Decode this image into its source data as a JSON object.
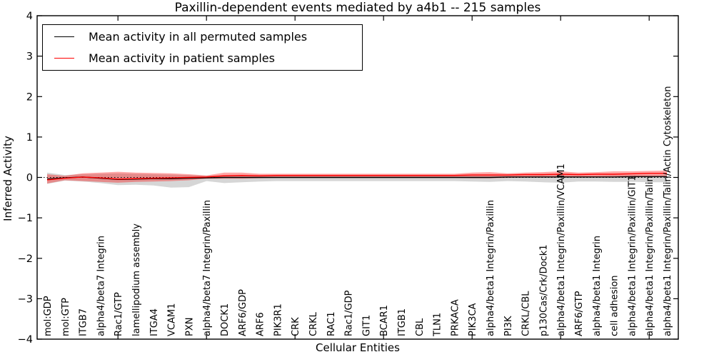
{
  "chart_data": {
    "type": "line",
    "title": "Paxillin-dependent events mediated by a4b1 -- 215 samples",
    "xlabel": "Cellular Entities",
    "ylabel": "Inferred Activity",
    "ylim": [
      -4,
      4
    ],
    "yticks": [
      -4,
      -3,
      -2,
      -1,
      0,
      1,
      2,
      3,
      4
    ],
    "xtick_positions": [
      5,
      10,
      15,
      20,
      25,
      30,
      35
    ],
    "zero_reference_line": 0,
    "grid": false,
    "legend_position": "upper left",
    "categories": [
      "mol:GDP",
      "mol:GTP",
      "ITGB7",
      "alpha4/beta7 Integrin",
      "Rac1/GTP",
      "lamellipodium assembly",
      "ITGA4",
      "VCAM1",
      "PXN",
      "alpha4/beta7 Integrin/Paxillin",
      "DOCK1",
      "ARF6/GDP",
      "ARF6",
      "PIK3R1",
      "CRK",
      "CRKL",
      "RAC1",
      "Rac1/GDP",
      "GIT1",
      "BCAR1",
      "ITGB1",
      "CBL",
      "TLN1",
      "PRKACA",
      "PIK3CA",
      "alpha4/beta1 Integrin/Paxillin",
      "PI3K",
      "CRKL/CBL",
      "p130Cas/Crk/Dock1",
      "alpha4/beta1 Integrin/Paxillin/VCAM1",
      "ARF6/GTP",
      "alpha4/beta1 Integrin",
      "cell adhesion",
      "alpha4/beta1 Integrin/Paxillin/GIT1",
      "alpha4/beta1 Integrin/Paxillin/Talin",
      "alpha4/beta1 Integrin/Paxillin/Talin/Actin Cytoskeleton"
    ],
    "series": [
      {
        "name": "Mean activity in all permuted samples",
        "color": "#000000",
        "values": [
          -0.04,
          -0.01,
          0.01,
          -0.02,
          -0.05,
          -0.04,
          -0.03,
          -0.03,
          -0.02,
          -0.01,
          0,
          0,
          0,
          0,
          0,
          0,
          0,
          0,
          0,
          0,
          0,
          0,
          0,
          0,
          0,
          0,
          0.01,
          0.01,
          0.01,
          0.01,
          0.01,
          0.01,
          0.01,
          0.02,
          0.02,
          0.02
        ]
      },
      {
        "name": "Mean activity in patient samples",
        "color": "#ff0000",
        "values": [
          -0.06,
          -0.02,
          0.01,
          -0.01,
          -0.04,
          -0.03,
          -0.02,
          -0.01,
          0,
          0.01,
          0.04,
          0.05,
          0.04,
          0.05,
          0.05,
          0.05,
          0.05,
          0.05,
          0.05,
          0.05,
          0.05,
          0.05,
          0.05,
          0.05,
          0.06,
          0.06,
          0.06,
          0.07,
          0.07,
          0.08,
          0.07,
          0.08,
          0.08,
          0.09,
          0.1,
          0.1
        ]
      }
    ],
    "bands": [
      {
        "name": "permuted-samples-range",
        "color": "#000000",
        "opacity": 0.16,
        "upper": [
          0.12,
          0.06,
          0.08,
          0.09,
          0.1,
          0.09,
          0.08,
          0.07,
          0.06,
          0.04,
          0.05,
          0.05,
          0.05,
          0.04,
          0.04,
          0.04,
          0.04,
          0.04,
          0.04,
          0.04,
          0.04,
          0.04,
          0.04,
          0.04,
          0.05,
          0.05,
          0.05,
          0.05,
          0.06,
          0.06,
          0.05,
          0.05,
          0.06,
          0.06,
          0.06,
          0.06
        ],
        "lower": [
          -0.16,
          -0.08,
          -0.1,
          -0.14,
          -0.19,
          -0.18,
          -0.2,
          -0.25,
          -0.24,
          -0.09,
          -0.14,
          -0.12,
          -0.1,
          -0.09,
          -0.09,
          -0.09,
          -0.09,
          -0.09,
          -0.09,
          -0.09,
          -0.09,
          -0.09,
          -0.09,
          -0.09,
          -0.1,
          -0.11,
          -0.09,
          -0.1,
          -0.12,
          -0.13,
          -0.1,
          -0.1,
          -0.11,
          -0.11,
          -0.12,
          -0.12
        ]
      },
      {
        "name": "patient-samples-range",
        "color": "#ff0000",
        "opacity": 0.35,
        "upper": [
          0.08,
          0.04,
          0.1,
          0.12,
          0.14,
          0.12,
          0.11,
          0.1,
          0.08,
          0.05,
          0.12,
          0.12,
          0.09,
          0.09,
          0.09,
          0.09,
          0.09,
          0.09,
          0.09,
          0.09,
          0.09,
          0.09,
          0.09,
          0.09,
          0.12,
          0.13,
          0.1,
          0.12,
          0.13,
          0.15,
          0.12,
          0.13,
          0.15,
          0.15,
          0.16,
          0.17
        ],
        "lower": [
          -0.15,
          -0.07,
          -0.09,
          -0.11,
          -0.13,
          -0.11,
          -0.1,
          -0.09,
          -0.07,
          -0.03,
          -0.03,
          -0.03,
          -0.02,
          -0.01,
          -0.01,
          -0.01,
          -0.01,
          -0.01,
          -0.01,
          -0.01,
          -0.01,
          -0.01,
          -0.01,
          -0.01,
          -0.02,
          -0.02,
          -0.01,
          0,
          0,
          0.01,
          0.01,
          0.01,
          0.02,
          0.02,
          0.03,
          0.03
        ]
      }
    ]
  }
}
